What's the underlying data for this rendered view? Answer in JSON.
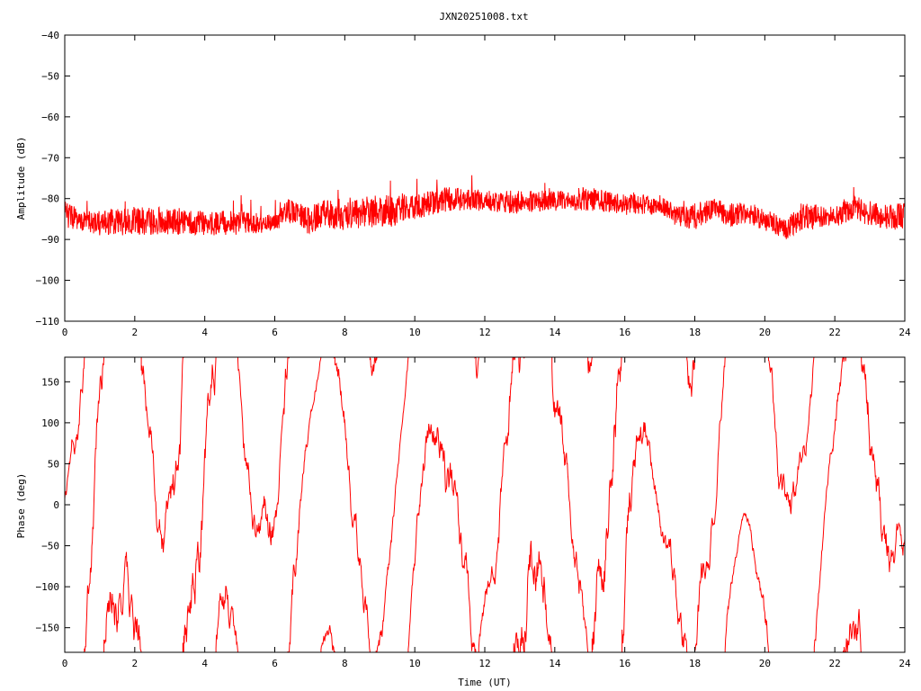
{
  "title": "JXN20251008.txt",
  "chart_data": [
    {
      "type": "line",
      "title": "JXN20251008.txt",
      "xlabel": "",
      "ylabel": "Amplitude (dB)",
      "xlim": [
        0,
        24
      ],
      "ylim": [
        -110,
        -40
      ],
      "xticks": [
        0,
        2,
        4,
        6,
        8,
        10,
        12,
        14,
        16,
        18,
        20,
        22,
        24
      ],
      "yticks": [
        -40,
        -50,
        -60,
        -70,
        -80,
        -90,
        -100,
        -110
      ],
      "grid": false,
      "series": [
        {
          "color": "#ff0000",
          "envelope": {
            "x": [
              0,
              0.5,
              1,
              2,
              3,
              4,
              5,
              6,
              6.4,
              7,
              7.4,
              8,
              8.8,
              9.5,
              10,
              11,
              12,
              13,
              14,
              15,
              16,
              17,
              17.5,
              18,
              18.5,
              19,
              19.5,
              20,
              20.6,
              21,
              22,
              22.6,
              23,
              24
            ],
            "low": [
              -87,
              -88,
              -89,
              -89,
              -89,
              -89,
              -89,
              -88,
              -86,
              -89,
              -87,
              -88,
              -87,
              -87,
              -85,
              -83,
              -83,
              -84,
              -83,
              -83,
              -84,
              -84,
              -87,
              -88,
              -85,
              -87,
              -86,
              -88,
              -90,
              -88,
              -87,
              -85,
              -87,
              -88
            ],
            "high": [
              -80,
              -83,
              -83,
              -82,
              -82,
              -83,
              -83,
              -84,
              -80,
              -82,
              -80,
              -81,
              -79,
              -79,
              -79,
              -77,
              -78,
              -78,
              -78,
              -77,
              -79,
              -79,
              -82,
              -81,
              -80,
              -81,
              -81,
              -82,
              -85,
              -81,
              -82,
              -79,
              -81,
              -81
            ]
          }
        }
      ]
    },
    {
      "type": "line",
      "title": "",
      "xlabel": "Time (UT)",
      "ylabel": "Phase (deg)",
      "xlim": [
        0,
        24
      ],
      "ylim": [
        -180,
        180
      ],
      "xticks": [
        0,
        2,
        4,
        6,
        8,
        10,
        12,
        14,
        16,
        18,
        20,
        22,
        24
      ],
      "yticks": [
        150,
        100,
        50,
        0,
        -50,
        -100,
        -150
      ],
      "grid": false,
      "series": [
        {
          "color": "#ff0000",
          "wrap": [
            -180,
            180
          ]
        }
      ]
    }
  ]
}
